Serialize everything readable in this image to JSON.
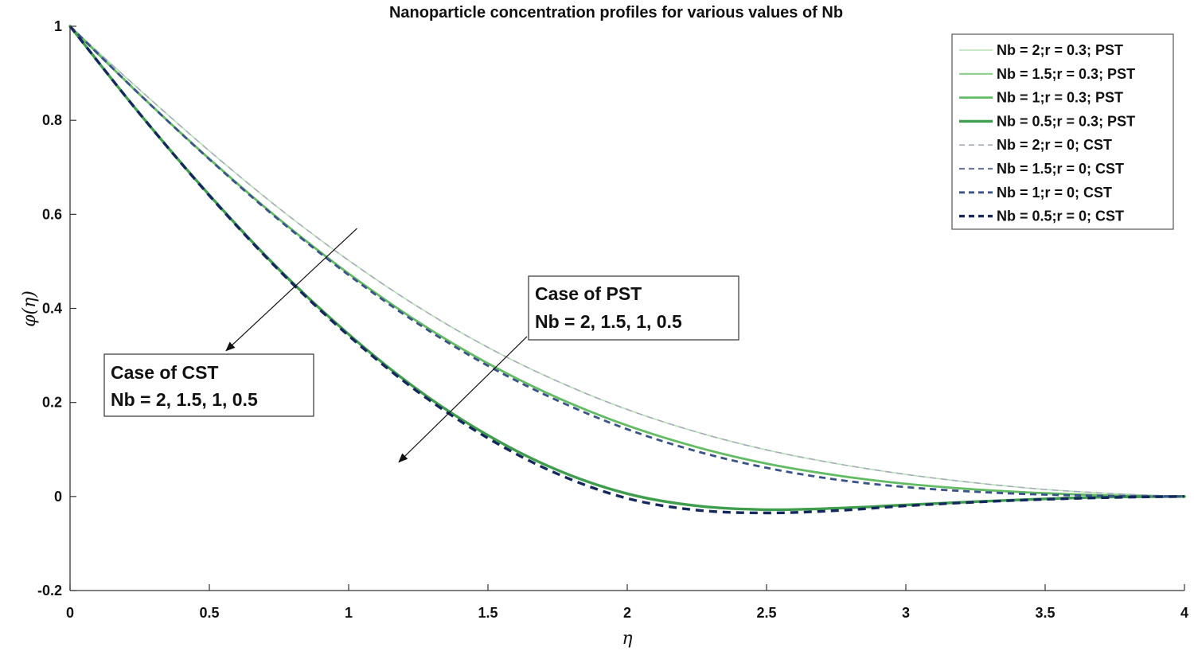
{
  "chart_data": {
    "type": "line",
    "title": "Nanoparticle concentration profiles for various values of Nb",
    "xlabel": "η",
    "ylabel": "φ(η)",
    "xlim": [
      0,
      4
    ],
    "ylim": [
      -0.2,
      1
    ],
    "xticks": [
      0,
      0.5,
      1,
      1.5,
      2,
      2.5,
      3,
      3.5,
      4
    ],
    "xtick_labels": [
      "0",
      "0.5",
      "1",
      "1.5",
      "2",
      "2.5",
      "3",
      "3.5",
      "4"
    ],
    "yticks": [
      -0.2,
      0,
      0.2,
      0.4,
      0.6,
      0.8,
      1
    ],
    "ytick_labels": [
      "-0.2",
      "0",
      "0.2",
      "0.4",
      "0.6",
      "0.8",
      "1"
    ],
    "grid": false,
    "legend_position": "top-right",
    "x": [
      0,
      0.25,
      0.5,
      0.75,
      1,
      1.25,
      1.5,
      1.75,
      2,
      2.25,
      2.5,
      2.75,
      3,
      3.25,
      3.5,
      3.75,
      4
    ],
    "series": [
      {
        "name": "Nb = 2;r = 0.3; PST",
        "style": "solid",
        "color": "#b6e2b6",
        "width": 1.6,
        "values": [
          1.0,
          0.865,
          0.735,
          0.613,
          0.502,
          0.403,
          0.317,
          0.245,
          0.185,
          0.137,
          0.099,
          0.07,
          0.047,
          0.029,
          0.015,
          0.006,
          0.0
        ]
      },
      {
        "name": "Nb = 1.5;r = 0.3; PST",
        "style": "solid",
        "color": "#8ccf8c",
        "width": 2.2,
        "values": [
          1.0,
          0.855,
          0.718,
          0.59,
          0.474,
          0.371,
          0.283,
          0.21,
          0.151,
          0.105,
          0.07,
          0.045,
          0.027,
          0.015,
          0.007,
          0.002,
          0.0
        ]
      },
      {
        "name": "Nb = 1;r = 0.3; PST",
        "style": "solid",
        "color": "#63bb63",
        "width": 2.8,
        "values": [
          1.0,
          0.855,
          0.718,
          0.59,
          0.474,
          0.371,
          0.283,
          0.21,
          0.151,
          0.105,
          0.07,
          0.045,
          0.027,
          0.015,
          0.007,
          0.002,
          0.0
        ]
      },
      {
        "name": "Nb = 0.5;r = 0.3; PST",
        "style": "solid",
        "color": "#3f9e4d",
        "width": 3.4,
        "values": [
          1.0,
          0.814,
          0.641,
          0.483,
          0.345,
          0.226,
          0.13,
          0.056,
          0.006,
          -0.02,
          -0.028,
          -0.025,
          -0.018,
          -0.011,
          -0.005,
          -0.001,
          0.0
        ]
      },
      {
        "name": "Nb = 2;r = 0; CST",
        "style": "dashed",
        "color": "#a5acb8",
        "width": 1.6,
        "values": [
          1.0,
          0.865,
          0.735,
          0.613,
          0.502,
          0.403,
          0.317,
          0.245,
          0.185,
          0.137,
          0.099,
          0.07,
          0.047,
          0.029,
          0.015,
          0.006,
          0.0
        ]
      },
      {
        "name": "Nb = 1.5;r = 0; CST",
        "style": "dashed",
        "color": "#6b7a9b",
        "width": 2.2,
        "values": [
          1.0,
          0.855,
          0.717,
          0.588,
          0.471,
          0.367,
          0.278,
          0.204,
          0.143,
          0.096,
          0.061,
          0.036,
          0.02,
          0.01,
          0.004,
          0.001,
          0.0
        ]
      },
      {
        "name": "Nb = 1;r = 0; CST",
        "style": "dashed",
        "color": "#3a5389",
        "width": 2.8,
        "values": [
          1.0,
          0.855,
          0.717,
          0.588,
          0.471,
          0.367,
          0.278,
          0.204,
          0.143,
          0.096,
          0.061,
          0.036,
          0.02,
          0.01,
          0.004,
          0.001,
          0.0
        ]
      },
      {
        "name": "Nb = 0.5;r = 0; CST",
        "style": "dashed",
        "color": "#14285e",
        "width": 3.4,
        "values": [
          1.0,
          0.814,
          0.64,
          0.481,
          0.342,
          0.222,
          0.124,
          0.048,
          -0.004,
          -0.029,
          -0.035,
          -0.03,
          -0.02,
          -0.012,
          -0.006,
          -0.002,
          0.0
        ]
      }
    ],
    "annotations": [
      {
        "lines": [
          "Case of CST",
          "Nb = 2, 1.5, 1, 0.5"
        ],
        "arrow_from": [
          1.03,
          0.57
        ],
        "arrow_to": [
          0.56,
          0.31
        ]
      },
      {
        "lines": [
          "Case of PST",
          "Nb = 2, 1.5, 1, 0.5"
        ],
        "arrow_from": [
          1.64,
          0.34
        ],
        "arrow_to": [
          1.18,
          0.073
        ]
      }
    ]
  }
}
